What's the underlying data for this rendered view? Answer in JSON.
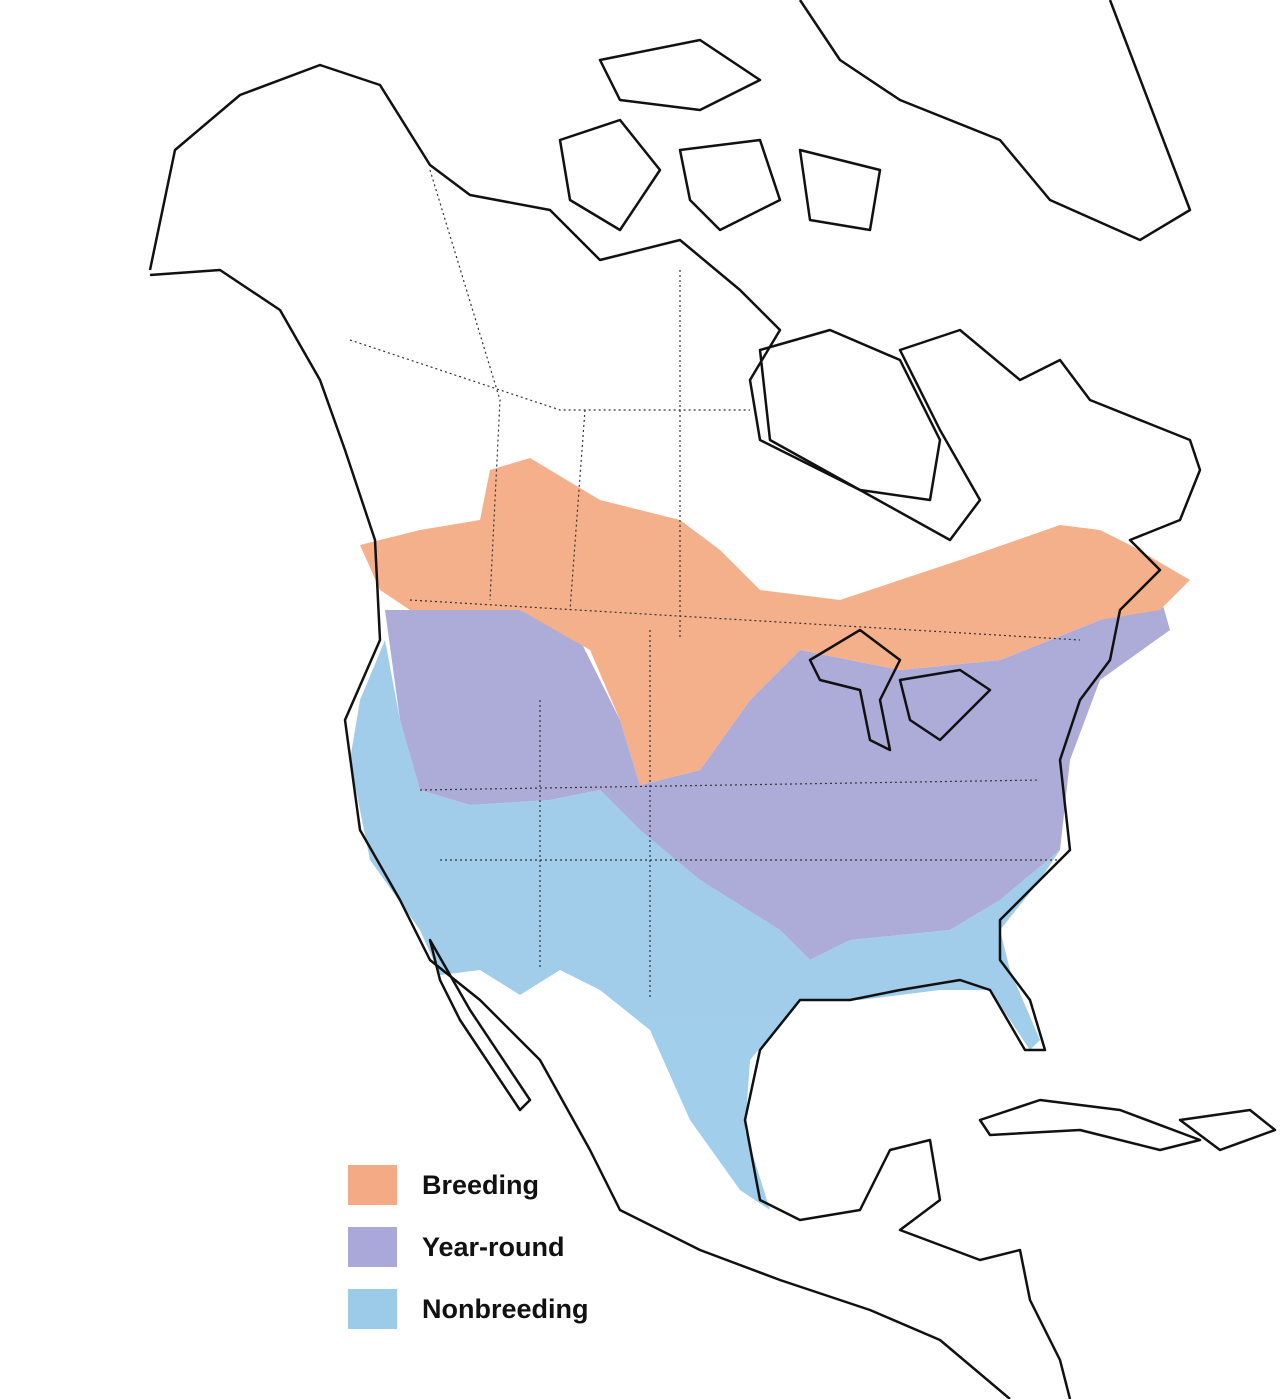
{
  "map": {
    "region": "North America",
    "legend": [
      {
        "label": "Breeding",
        "color": "#f4ab85"
      },
      {
        "label": "Year-round",
        "color": "#a9a8d8"
      },
      {
        "label": "Nonbreeding",
        "color": "#9ccbea"
      }
    ]
  }
}
